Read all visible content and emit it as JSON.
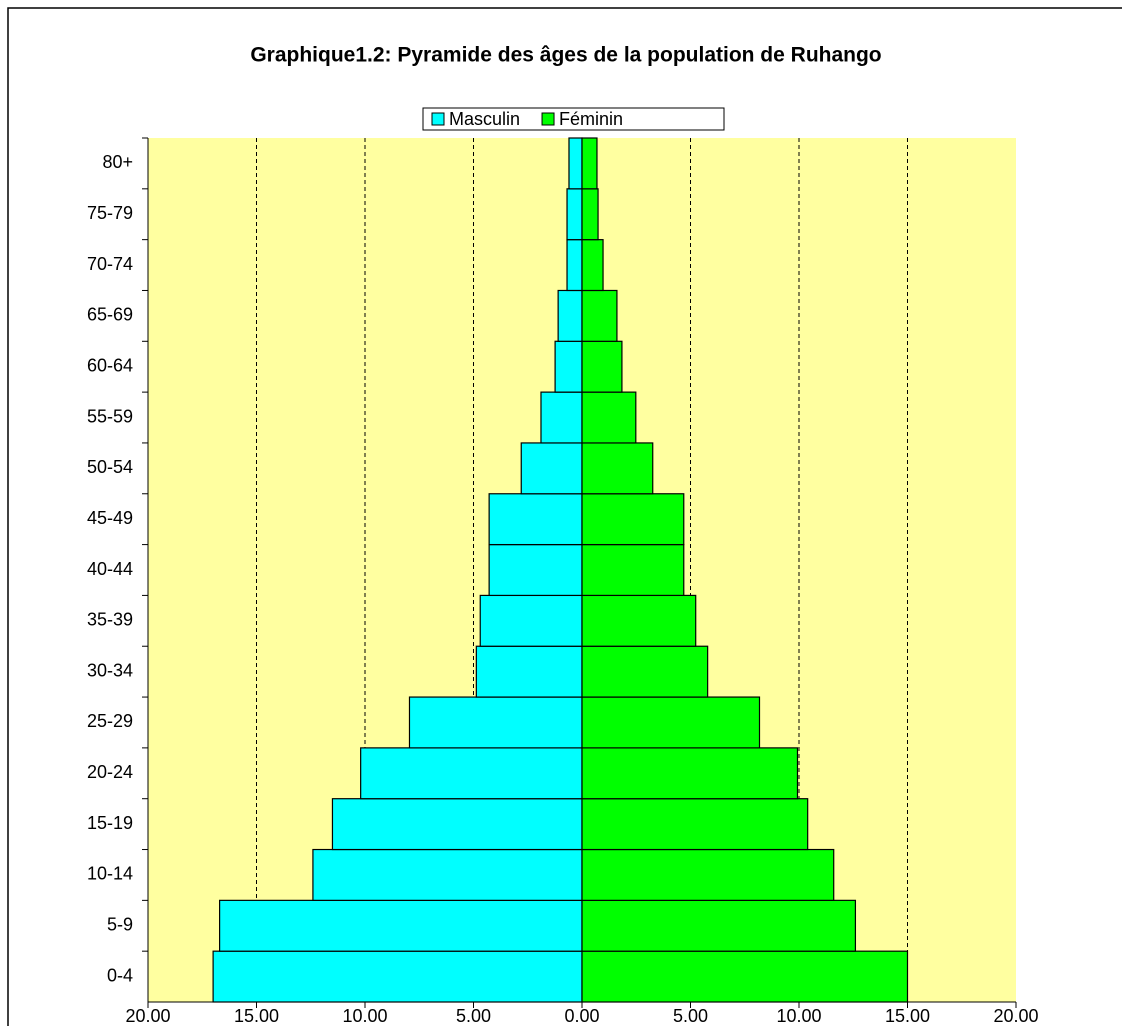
{
  "chart_data": {
    "type": "pyramid",
    "title": "Graphique1.2: Pyramide des âges de la population de Ruhango",
    "categories": [
      "0-4",
      "5-9",
      "10-14",
      "15-19",
      "20-24",
      "25-29",
      "30-34",
      "35-39",
      "40-44",
      "45-49",
      "50-54",
      "55-59",
      "60-64",
      "65-69",
      "70-74",
      "75-79",
      "80+"
    ],
    "series": [
      {
        "name": "Masculin",
        "color": "#00ffff",
        "values": [
          -17.0,
          -16.7,
          -12.4,
          -11.5,
          -10.2,
          -7.95,
          -4.87,
          -4.69,
          -4.28,
          -4.28,
          -2.8,
          -1.89,
          -1.24,
          -1.1,
          -0.69,
          -0.69,
          -0.6
        ]
      },
      {
        "name": "Féminin",
        "color": "#00ff00",
        "values": [
          15.0,
          12.6,
          11.6,
          10.4,
          9.93,
          8.18,
          5.79,
          5.24,
          4.69,
          4.69,
          3.26,
          2.48,
          1.84,
          1.61,
          0.97,
          0.74,
          0.69
        ]
      }
    ],
    "xlim": [
      -20,
      20
    ],
    "xticks": [
      {
        "value": -20,
        "label": "20.00"
      },
      {
        "value": -15,
        "label": "15.00"
      },
      {
        "value": -10,
        "label": "10.00"
      },
      {
        "value": -5,
        "label": "5.00"
      },
      {
        "value": 0,
        "label": "0.00"
      },
      {
        "value": 5,
        "label": "5.00"
      },
      {
        "value": 10,
        "label": "10.00"
      },
      {
        "value": 15,
        "label": "15.00"
      },
      {
        "value": 20,
        "label": "20.00"
      }
    ],
    "grid": true,
    "legend": "top",
    "plot_background": "#ffffa0"
  }
}
